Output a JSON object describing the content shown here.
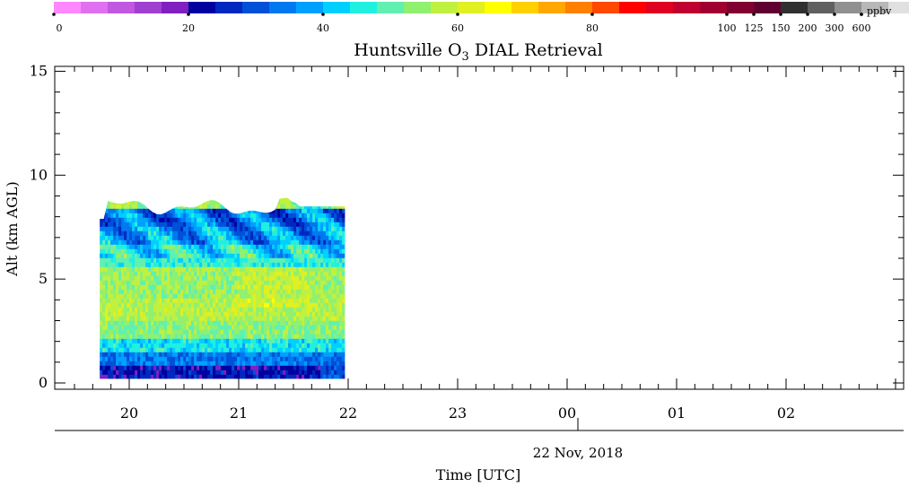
{
  "chart_data": {
    "type": "heatmap",
    "title_parts": [
      "Huntsville O",
      "3",
      " DIAL Retrieval"
    ],
    "xlabel": "Time [UTC]",
    "date_label": "22 Nov, 2018",
    "ylabel": "Alt (km AGL)",
    "x_ticks": [
      "20",
      "21",
      "22",
      "23",
      "00",
      "01",
      "02"
    ],
    "y_ticks": [
      "0",
      "5",
      "10",
      "15"
    ],
    "ylim": [
      0,
      15.5
    ],
    "xlim_hours": [
      19.5,
      27.0
    ],
    "colorbar": {
      "unit": "ppbv",
      "colors": [
        "#ff88ff",
        "#e070f0",
        "#c058e0",
        "#a040d0",
        "#8020c0",
        "#0000a0",
        "#0028c0",
        "#0050d8",
        "#0078f0",
        "#00a0ff",
        "#00d0ff",
        "#20f0e0",
        "#60f0b0",
        "#90f070",
        "#c0f040",
        "#e0f020",
        "#ffff00",
        "#ffd000",
        "#ffa800",
        "#ff8000",
        "#ff4800",
        "#ff0000",
        "#e00020",
        "#c00030",
        "#a00030",
        "#800030",
        "#600030",
        "#303030",
        "#606060",
        "#909090",
        "#b8b8b8",
        "#e0e0e0"
      ],
      "labels": [
        {
          "text": "0",
          "index": 0
        },
        {
          "text": "20",
          "index": 5
        },
        {
          "text": "40",
          "index": 10
        },
        {
          "text": "60",
          "index": 15
        },
        {
          "text": "80",
          "index": 20
        },
        {
          "text": "100",
          "index": 25
        },
        {
          "text": "125",
          "index": 26
        },
        {
          "text": "150",
          "index": 27
        },
        {
          "text": "200",
          "index": 28
        },
        {
          "text": "300",
          "index": 29
        },
        {
          "text": "600",
          "index": 30
        }
      ]
    },
    "data_extent": {
      "time_start_hours": 19.73,
      "time_end_hours": 21.97,
      "alt_bottom_km": 0.2,
      "alt_top_km": 8.9
    },
    "profile_layers": [
      {
        "alt_km": [
          0.2,
          0.8
        ],
        "o3_ppbv": 24
      },
      {
        "alt_km": [
          0.8,
          1.4
        ],
        "o3_ppbv": 34
      },
      {
        "alt_km": [
          1.4,
          2.0
        ],
        "o3_ppbv": 44
      },
      {
        "alt_km": [
          2.0,
          3.0
        ],
        "o3_ppbv": 53
      },
      {
        "alt_km": [
          3.0,
          4.0
        ],
        "o3_ppbv": 57
      },
      {
        "alt_km": [
          4.0,
          5.5
        ],
        "o3_ppbv": 55
      },
      {
        "alt_km": [
          5.5,
          6.5
        ],
        "o3_ppbv": 47
      },
      {
        "alt_km": [
          6.5,
          7.5
        ],
        "o3_ppbv": 40
      },
      {
        "alt_km": [
          7.5,
          8.3
        ],
        "o3_ppbv": 37
      },
      {
        "alt_km": [
          8.3,
          8.9
        ],
        "o3_ppbv": 52
      }
    ]
  }
}
